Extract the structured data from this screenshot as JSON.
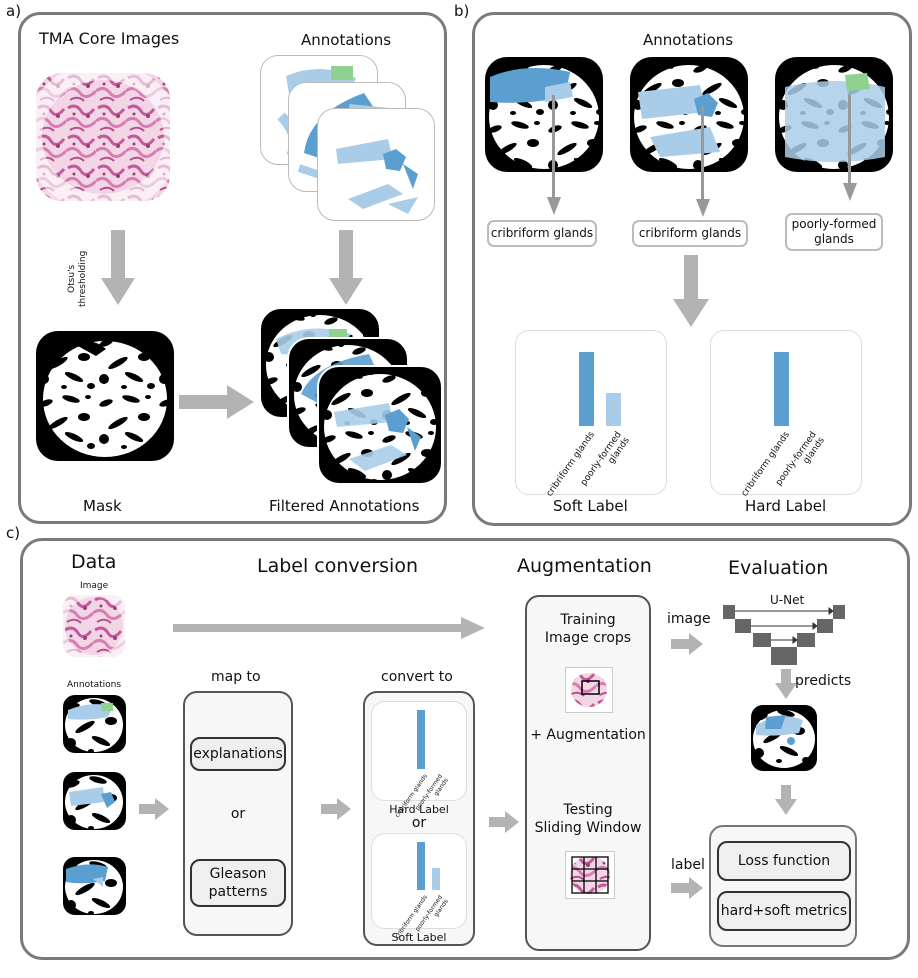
{
  "panels": {
    "a": {
      "label": "a)",
      "tma_title": "TMA Core Images",
      "annotations_title": "Annotations",
      "otsu_label": "Otsu's\nthresholding",
      "mask_label": "Mask",
      "filtered_label": "Filtered Annotations"
    },
    "b": {
      "label": "b)",
      "annotations_title": "Annotations",
      "pills": [
        "cribriform glands",
        "cribriform glands",
        "poorly-formed\nglands"
      ],
      "soft_chart": {
        "title": "Soft Label",
        "type": "bar",
        "categories": [
          "cribriform glands",
          "poorly-formed\nglands"
        ],
        "values": [
          1.0,
          0.45
        ],
        "colors": [
          "#5b9fd0",
          "#a9cde9"
        ]
      },
      "hard_chart": {
        "title": "Hard Label",
        "type": "bar",
        "categories": [
          "cribriform glands",
          "poorly-formed\nglands"
        ],
        "values": [
          1.0,
          0.0
        ],
        "colors": [
          "#5b9fd0",
          "#a9cde9"
        ]
      }
    },
    "c": {
      "label": "c)",
      "data_title": "Data",
      "image_label": "Image",
      "annotations_label": "Annotations",
      "label_conversion_title": "Label conversion",
      "map_to": "map to",
      "explanations": "explanations",
      "or": "or",
      "gleason": "Gleason\npatterns",
      "convert_to": "convert to",
      "hard_label": "Hard Label",
      "soft_label": "Soft Label",
      "small_tick_1": "cribriform glands",
      "small_tick_2": "poorly-formed\nglands",
      "augmentation_title": "Augmentation",
      "training": "Training\nImage crops",
      "plus_aug": "+ Augmentation",
      "testing": "Testing\nSliding Window",
      "evaluation_title": "Evaluation",
      "image_arrow_label": "image",
      "unet": "U-Net",
      "predicts": "predicts",
      "label_arrow_label": "label",
      "loss": "Loss function",
      "metrics": "hard+soft metrics"
    }
  },
  "colors": {
    "panel_border": "#7a7a7a",
    "arrow": "#b3b3b3",
    "annotation_dark": "#5b9fd0",
    "annotation_light": "#a9cde9",
    "annotation_green": "#8fd28f",
    "tissue": "#d87fb0"
  }
}
